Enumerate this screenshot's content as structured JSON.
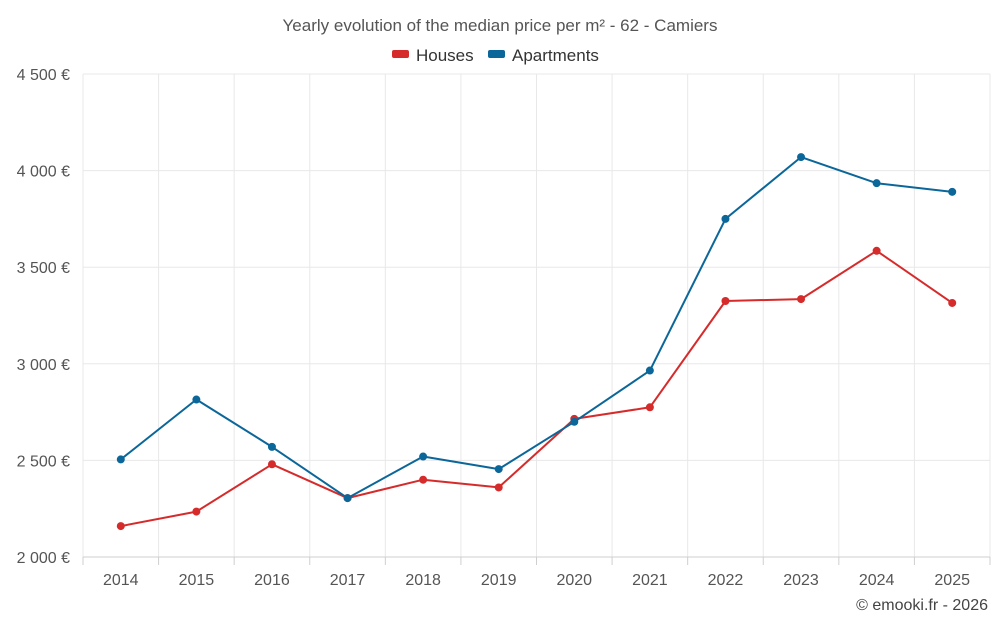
{
  "chart_data": {
    "type": "line",
    "title": "Yearly evolution of the median price per m² - 62 - Camiers",
    "categories": [
      "2014",
      "2015",
      "2016",
      "2017",
      "2018",
      "2019",
      "2020",
      "2021",
      "2022",
      "2023",
      "2024",
      "2025"
    ],
    "series": [
      {
        "name": "Houses",
        "color": "#d62b2b",
        "values": [
          2160,
          2235,
          2480,
          2305,
          2400,
          2360,
          2715,
          2775,
          3325,
          3335,
          3585,
          3315
        ]
      },
      {
        "name": "Apartments",
        "color": "#0b6699",
        "values": [
          2505,
          2815,
          2570,
          2305,
          2520,
          2455,
          2700,
          2965,
          3750,
          4070,
          3935,
          3890
        ]
      }
    ],
    "yticks": [
      2000,
      2500,
      3000,
      3500,
      4000,
      4500
    ],
    "ytick_labels": [
      "2 000 €",
      "2 500 €",
      "3 000 €",
      "3 500 €",
      "4 000 €",
      "4 500 €"
    ],
    "ylim": [
      2000,
      4500
    ],
    "xlabel": "",
    "ylabel": "",
    "legend_position": "top-center",
    "grid": true
  },
  "credit": "© emooki.fr - 2026"
}
